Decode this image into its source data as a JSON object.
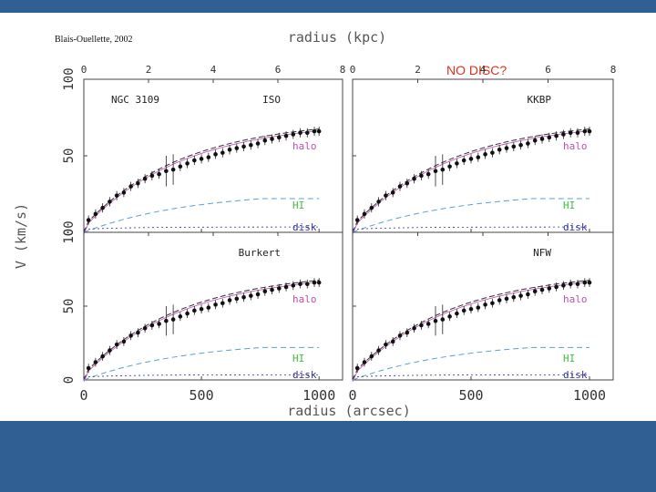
{
  "credit": "Blais-Ouellette, 2002",
  "top_axis_label": "radius (kpc)",
  "bottom_axis_label": "radius (arcsec)",
  "y_axis_label": "V (km/s)",
  "annotation": "NO DISC?",
  "colors": {
    "halo": "#c050b0",
    "hi": "#40c040",
    "disk": "#3030a0",
    "annotation": "#e0301e",
    "gas_curve": "#5aa0d0"
  },
  "chart_data": [
    {
      "type": "scatter",
      "galaxy": "NGC 3109",
      "model": "ISO",
      "curve_labels": [
        "halo",
        "HI",
        "disk"
      ],
      "x_unit": "arcsec",
      "xlim": [
        0,
        1100
      ],
      "ylim": [
        0,
        100
      ],
      "top_ticks": [
        "0",
        "2",
        "4",
        "6",
        "8"
      ],
      "bottom_ticks": [
        "0",
        "500",
        "1000"
      ],
      "y_ticks": [
        "100",
        "50",
        "0"
      ],
      "x": [
        20,
        50,
        80,
        110,
        140,
        170,
        200,
        230,
        260,
        290,
        320,
        350,
        380,
        410,
        440,
        470,
        500,
        530,
        560,
        590,
        620,
        650,
        680,
        710,
        740,
        770,
        800,
        830,
        860,
        890,
        920,
        950,
        980,
        1000
      ],
      "y": [
        8,
        12,
        16,
        20,
        24,
        26,
        30,
        32,
        35,
        37,
        38,
        40,
        41,
        43,
        45,
        47,
        48,
        49,
        51,
        52,
        54,
        55,
        56,
        57,
        58,
        60,
        61,
        62,
        63,
        64,
        65,
        65,
        66,
        66
      ]
    },
    {
      "type": "scatter",
      "galaxy": "",
      "model": "KKBP",
      "curve_labels": [
        "halo",
        "HI",
        "disk"
      ],
      "x_unit": "arcsec",
      "xlim": [
        0,
        1100
      ],
      "ylim": [
        0,
        100
      ],
      "top_ticks": [
        "0",
        "2",
        "4",
        "6",
        "8"
      ],
      "bottom_ticks": [
        "0",
        "500",
        "1000"
      ],
      "y_ticks": [
        "100",
        "50",
        "0"
      ],
      "x": [
        20,
        50,
        80,
        110,
        140,
        170,
        200,
        230,
        260,
        290,
        320,
        350,
        380,
        410,
        440,
        470,
        500,
        530,
        560,
        590,
        620,
        650,
        680,
        710,
        740,
        770,
        800,
        830,
        860,
        890,
        920,
        950,
        980,
        1000
      ],
      "y": [
        8,
        12,
        16,
        20,
        24,
        26,
        30,
        32,
        35,
        37,
        38,
        40,
        41,
        43,
        45,
        47,
        48,
        49,
        51,
        52,
        54,
        55,
        56,
        57,
        58,
        60,
        61,
        62,
        63,
        64,
        65,
        65,
        66,
        66
      ]
    },
    {
      "type": "scatter",
      "galaxy": "",
      "model": "Burkert",
      "curve_labels": [
        "halo",
        "HI",
        "disk"
      ],
      "x_unit": "arcsec",
      "xlim": [
        0,
        1100
      ],
      "ylim": [
        0,
        100
      ],
      "top_ticks": [
        "0",
        "2",
        "4",
        "6",
        "8"
      ],
      "bottom_ticks": [
        "0",
        "500",
        "1000"
      ],
      "y_ticks": [
        "100",
        "50",
        "0"
      ],
      "x": [
        20,
        50,
        80,
        110,
        140,
        170,
        200,
        230,
        260,
        290,
        320,
        350,
        380,
        410,
        440,
        470,
        500,
        530,
        560,
        590,
        620,
        650,
        680,
        710,
        740,
        770,
        800,
        830,
        860,
        890,
        920,
        950,
        980,
        1000
      ],
      "y": [
        8,
        12,
        16,
        20,
        24,
        26,
        30,
        32,
        35,
        37,
        38,
        40,
        41,
        43,
        45,
        47,
        48,
        49,
        51,
        52,
        54,
        55,
        56,
        57,
        58,
        60,
        61,
        62,
        63,
        64,
        65,
        65,
        66,
        66
      ]
    },
    {
      "type": "scatter",
      "galaxy": "",
      "model": "NFW",
      "curve_labels": [
        "halo",
        "HI",
        "disk"
      ],
      "x_unit": "arcsec",
      "xlim": [
        0,
        1100
      ],
      "ylim": [
        0,
        100
      ],
      "top_ticks": [
        "0",
        "2",
        "4",
        "6",
        "8"
      ],
      "bottom_ticks": [
        "0",
        "500",
        "1000"
      ],
      "y_ticks": [
        "100",
        "50",
        "0"
      ],
      "x": [
        20,
        50,
        80,
        110,
        140,
        170,
        200,
        230,
        260,
        290,
        320,
        350,
        380,
        410,
        440,
        470,
        500,
        530,
        560,
        590,
        620,
        650,
        680,
        710,
        740,
        770,
        800,
        830,
        860,
        890,
        920,
        950,
        980,
        1000
      ],
      "y": [
        8,
        12,
        16,
        20,
        24,
        26,
        30,
        32,
        35,
        37,
        38,
        40,
        41,
        43,
        45,
        47,
        48,
        49,
        51,
        52,
        54,
        55,
        56,
        57,
        58,
        60,
        61,
        62,
        63,
        64,
        65,
        65,
        66,
        66
      ]
    }
  ]
}
